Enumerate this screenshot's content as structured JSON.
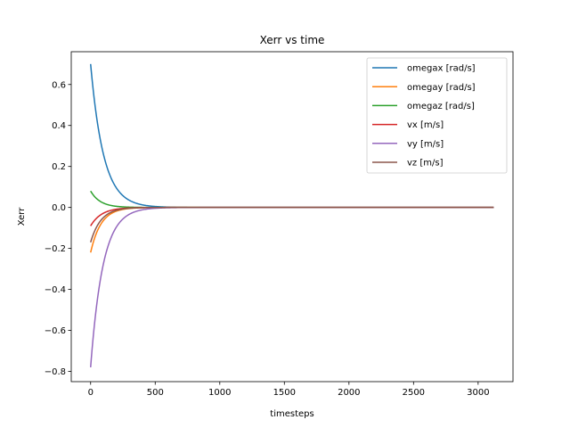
{
  "chart_data": {
    "type": "line",
    "title": "Xerr vs time",
    "xlabel": "timesteps",
    "ylabel": "Xerr",
    "xlim": [
      -150,
      3270
    ],
    "ylim": [
      -0.85,
      0.76
    ],
    "xticks": [
      0,
      500,
      1000,
      1500,
      2000,
      2500,
      3000
    ],
    "xtick_labels": [
      "0",
      "500",
      "1000",
      "1500",
      "2000",
      "2500",
      "3000"
    ],
    "yticks": [
      -0.8,
      -0.6,
      -0.4,
      -0.2,
      0.0,
      0.2,
      0.4,
      0.6
    ],
    "ytick_labels": [
      "−0.8",
      "−0.6",
      "−0.4",
      "−0.2",
      "0.0",
      "0.2",
      "0.4",
      "0.6"
    ],
    "grid": false,
    "legend_position": "top-right",
    "x_end": 3120,
    "series": [
      {
        "name": "omegax [rad/s]",
        "color": "#1f77b4",
        "start": 0.7,
        "decay": 100
      },
      {
        "name": "omegay [rad/s]",
        "color": "#ff7f0e",
        "start": -0.22,
        "decay": 80
      },
      {
        "name": "omegaz [rad/s]",
        "color": "#2ca02c",
        "start": 0.08,
        "decay": 75
      },
      {
        "name": "vx [m/s]",
        "color": "#d62728",
        "start": -0.09,
        "decay": 85
      },
      {
        "name": "vy [m/s]",
        "color": "#9467bd",
        "start": -0.78,
        "decay": 95
      },
      {
        "name": "vz [m/s]",
        "color": "#8c564b",
        "start": -0.17,
        "decay": 80
      }
    ]
  }
}
